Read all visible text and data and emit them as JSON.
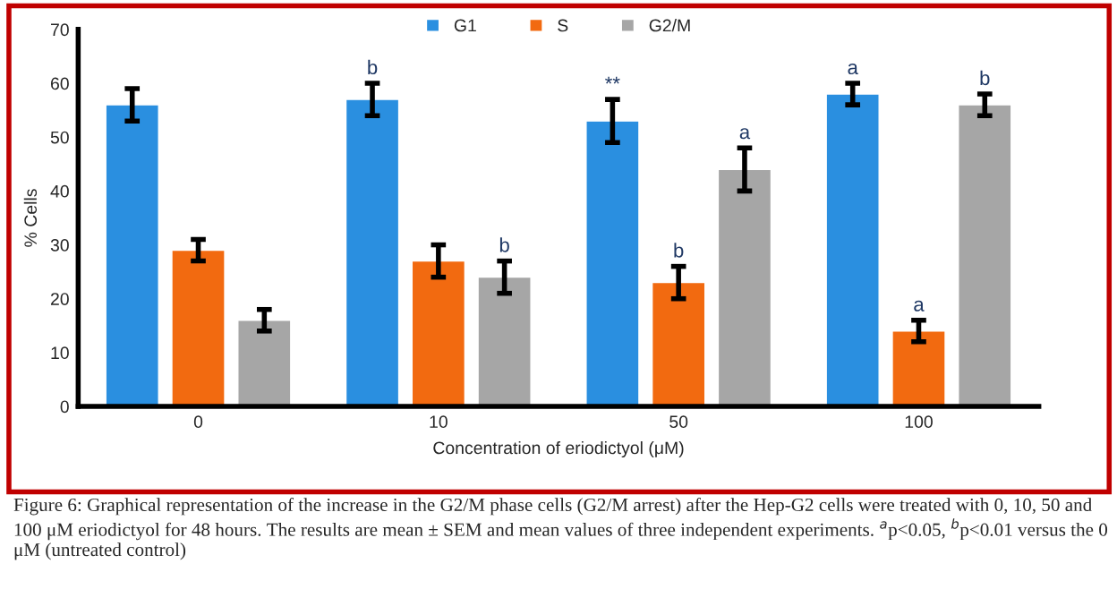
{
  "chart_data": {
    "type": "bar",
    "categories": [
      "0",
      "10",
      "50",
      "100"
    ],
    "xlabel": "Concentration of eriodictyol (μM)",
    "ylabel": "% Cells",
    "ylim": [
      0,
      70
    ],
    "yticks": [
      0,
      10,
      20,
      30,
      40,
      50,
      60,
      70
    ],
    "grid": false,
    "legend": "top",
    "series": [
      {
        "name": "G1",
        "color": "#2a8fe0",
        "values": [
          56,
          57,
          53,
          58
        ],
        "errors": [
          3,
          3,
          4,
          2
        ],
        "value_labels": [
          null,
          "b",
          "**",
          "a"
        ]
      },
      {
        "name": "S",
        "color": "#f26a10",
        "values": [
          29,
          27,
          23,
          14
        ],
        "errors": [
          2,
          3,
          3,
          2
        ],
        "value_labels": [
          null,
          null,
          "b",
          "a"
        ]
      },
      {
        "name": "G2/M",
        "color": "#a6a6a6",
        "values": [
          16,
          24,
          44,
          56
        ],
        "errors": [
          2,
          3,
          4,
          2
        ],
        "value_labels": [
          null,
          "b",
          "a",
          "b"
        ]
      }
    ],
    "annotations": [
      "Figure 6: Graphical representation of the increase in the G2/M phase cells (G2/M arrest) after the Hep-G2 cells were treated with 0, 10, 50 and 100 μM eriodictyol for 48 hours. The results are mean ± SEM and mean values of three independent experiments. $^{a}$p<0.05, $^{b}$p<0.01 versus the 0 μM (untreated control)"
    ]
  }
}
